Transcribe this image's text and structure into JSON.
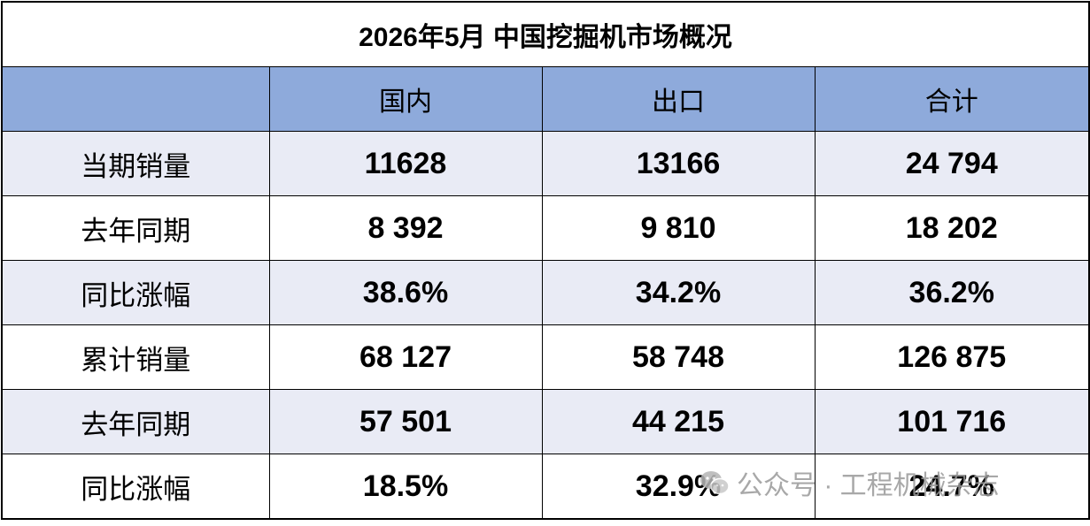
{
  "title": "2026年5月 中国挖掘机市场概况",
  "table": {
    "header": [
      "国内",
      "出口",
      "合计"
    ],
    "rows": [
      [
        "当期销量",
        "11628",
        "13166",
        "24 794"
      ],
      [
        "去年同期",
        "8 392",
        "9 810",
        "18 202"
      ],
      [
        "同比涨幅",
        "38.6%",
        "34.2%",
        "36.2%"
      ],
      [
        "累计销量",
        "68 127",
        "58 748",
        "126 875"
      ],
      [
        "去年同期",
        "57 501",
        "44 215",
        "101 716"
      ],
      [
        "同比涨幅",
        "18.5%",
        "32.9%",
        "24.7%"
      ]
    ]
  },
  "watermark": "公众号 · 工程机械杂志"
}
